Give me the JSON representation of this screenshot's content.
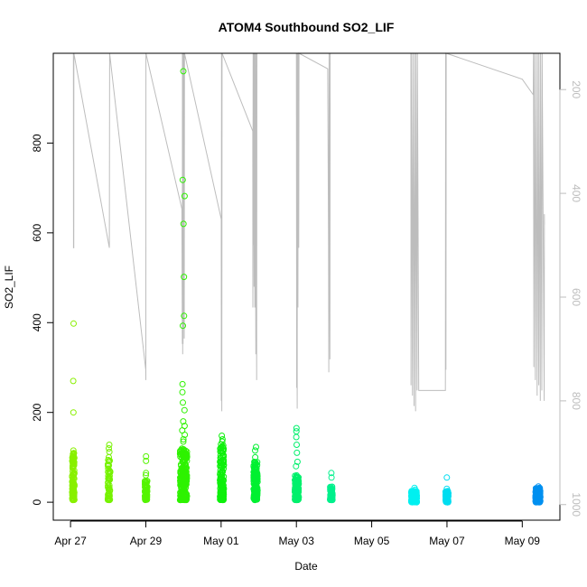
{
  "chart_data": {
    "type": "scatter",
    "title": "ATOM4 Southbound SO2_LIF",
    "xlabel": "Date",
    "ylabel": "SO2_LIF",
    "xlim": [
      "2016-04-26T13:00",
      "2016-05-10T00:00"
    ],
    "ylim": [
      -40,
      1000
    ],
    "x_ticks": [
      {
        "date": "2016-04-27",
        "label": "Apr 27"
      },
      {
        "date": "2016-04-29",
        "label": "Apr 29"
      },
      {
        "date": "2016-05-01",
        "label": "May 01"
      },
      {
        "date": "2016-05-03",
        "label": "May 03"
      },
      {
        "date": "2016-05-05",
        "label": "May 05"
      },
      {
        "date": "2016-05-07",
        "label": "May 07"
      },
      {
        "date": "2016-05-09",
        "label": "May 09"
      }
    ],
    "y_ticks": [
      0,
      200,
      400,
      600,
      800
    ],
    "secondary_axis": {
      "side": "right",
      "color": "#bdbdbd",
      "reversed": true,
      "ticks": [
        200,
        400,
        600,
        800,
        1000
      ],
      "range": [
        1030,
        130
      ]
    },
    "secondary_line": [
      [
        "2016-04-27T01:50",
        130
      ],
      [
        "2016-04-27T01:55",
        505
      ],
      [
        "2016-04-27T02:05",
        505
      ],
      [
        "2016-04-27T02:08",
        130
      ],
      [
        "2016-04-28T00:45",
        505
      ],
      [
        "2016-04-28T00:55",
        130
      ],
      [
        "2016-04-28T23:59",
        740
      ],
      [
        "2016-04-29T00:01",
        760
      ],
      [
        "2016-04-29T00:03",
        130
      ],
      [
        "2016-04-29T23:00",
        430
      ],
      [
        "2016-04-29T23:15",
        690
      ],
      [
        "2016-04-29T23:20",
        130
      ],
      [
        "2016-04-29T23:30",
        710
      ],
      [
        "2016-04-29T23:35",
        130
      ],
      [
        "2016-04-29T23:45",
        690
      ],
      [
        "2016-04-29T23:50",
        130
      ],
      [
        "2016-04-30T00:10",
        660
      ],
      [
        "2016-04-30T00:15",
        130
      ],
      [
        "2016-04-30T00:30",
        680
      ],
      [
        "2016-04-30T00:40",
        130
      ],
      [
        "2016-05-01T00:05",
        450
      ],
      [
        "2016-05-01T00:10",
        800
      ],
      [
        "2016-05-01T00:15",
        130
      ],
      [
        "2016-05-01T00:25",
        820
      ],
      [
        "2016-05-01T00:35",
        130
      ],
      [
        "2016-05-01T20:10",
        280
      ],
      [
        "2016-05-01T20:15",
        620
      ],
      [
        "2016-05-01T20:25",
        130
      ],
      [
        "2016-05-01T20:30",
        500
      ],
      [
        "2016-05-01T20:40",
        130
      ],
      [
        "2016-05-01T21:00",
        580
      ],
      [
        "2016-05-01T21:10",
        130
      ],
      [
        "2016-05-01T21:30",
        620
      ],
      [
        "2016-05-01T21:40",
        130
      ],
      [
        "2016-05-01T22:10",
        710
      ],
      [
        "2016-05-01T22:20",
        130
      ],
      [
        "2016-05-01T22:40",
        760
      ],
      [
        "2016-05-01T22:50",
        130
      ],
      [
        "2016-05-03T00:00",
        130
      ],
      [
        "2016-05-03T00:05",
        520
      ],
      [
        "2016-05-03T00:10",
        775
      ],
      [
        "2016-05-03T00:15",
        130
      ],
      [
        "2016-05-03T00:30",
        815
      ],
      [
        "2016-05-03T00:40",
        130
      ],
      [
        "2016-05-03T01:00",
        620
      ],
      [
        "2016-05-03T01:10",
        130
      ],
      [
        "2016-05-03T01:30",
        505
      ],
      [
        "2016-05-03T01:40",
        130
      ],
      [
        "2016-05-03T20:00",
        160
      ],
      [
        "2016-05-03T20:30",
        500
      ],
      [
        "2016-05-03T20:40",
        745
      ],
      [
        "2016-05-03T20:50",
        130
      ],
      [
        "2016-05-03T21:20",
        720
      ],
      [
        "2016-05-03T21:30",
        130
      ],
      [
        "2016-05-06T01:00",
        130
      ],
      [
        "2016-05-06T01:05",
        770
      ],
      [
        "2016-05-06T01:10",
        130
      ],
      [
        "2016-05-06T02:00",
        790
      ],
      [
        "2016-05-06T02:10",
        130
      ],
      [
        "2016-05-06T03:00",
        810
      ],
      [
        "2016-05-06T03:10",
        130
      ],
      [
        "2016-05-06T04:00",
        820
      ],
      [
        "2016-05-06T04:10",
        130
      ],
      [
        "2016-05-06T05:00",
        780
      ],
      [
        "2016-05-06T05:10",
        130
      ],
      [
        "2016-05-06T06:00",
        780
      ],
      [
        "2016-05-06T23:00",
        780
      ],
      [
        "2016-05-06T23:10",
        130
      ],
      [
        "2016-05-06T23:20",
        740
      ],
      [
        "2016-05-06T23:30",
        130
      ],
      [
        "2016-05-09T00:00",
        180
      ],
      [
        "2016-05-09T07:00",
        210
      ],
      [
        "2016-05-09T07:10",
        130
      ],
      [
        "2016-05-09T07:20",
        735
      ],
      [
        "2016-05-09T07:30",
        130
      ],
      [
        "2016-05-09T08:20",
        760
      ],
      [
        "2016-05-09T08:30",
        130
      ],
      [
        "2016-05-09T09:30",
        790
      ],
      [
        "2016-05-09T09:40",
        130
      ],
      [
        "2016-05-09T10:30",
        770
      ],
      [
        "2016-05-09T10:40",
        130
      ],
      [
        "2016-05-09T11:30",
        800
      ],
      [
        "2016-05-09T11:40",
        130
      ],
      [
        "2016-05-09T12:30",
        780
      ],
      [
        "2016-05-09T12:40",
        130
      ],
      [
        "2016-05-09T14:00",
        800
      ],
      [
        "2016-05-09T14:05",
        440
      ],
      [
        "2016-05-09T14:10",
        460
      ]
    ],
    "clusters": [
      {
        "center": "2016-04-27T01:45",
        "spread_hours": 1.5,
        "n": 140,
        "y_range": [
          5,
          110
        ],
        "color": "#89f000",
        "extra_points": [
          398,
          270,
          200,
          115,
          100
        ]
      },
      {
        "center": "2016-04-28T00:30",
        "spread_hours": 1.5,
        "n": 60,
        "y_range": [
          5,
          95
        ],
        "color": "#76f200",
        "extra_points": [
          128,
          120,
          112,
          100
        ]
      },
      {
        "center": "2016-04-29T00:10",
        "spread_hours": 1.5,
        "n": 80,
        "y_range": [
          5,
          50
        ],
        "color": "#55f400",
        "extra_points": [
          102,
          92,
          65,
          60
        ]
      },
      {
        "center": "2016-04-30T00:05",
        "spread_hours": 4.5,
        "n": 230,
        "y_range": [
          5,
          120
        ],
        "color": "#2ef200",
        "extra_points": [
          960,
          718,
          682,
          620,
          502,
          415,
          393,
          263,
          245,
          222,
          205,
          180,
          170,
          160,
          150,
          140,
          135
        ]
      },
      {
        "center": "2016-05-01T00:30",
        "spread_hours": 2.5,
        "n": 150,
        "y_range": [
          5,
          130
        ],
        "color": "#0ef00c",
        "extra_points": [
          148,
          140,
          135
        ]
      },
      {
        "center": "2016-05-01T22:00",
        "spread_hours": 2.5,
        "n": 140,
        "y_range": [
          5,
          90
        ],
        "color": "#00f031",
        "extra_points": [
          123,
          115,
          100
        ]
      },
      {
        "center": "2016-05-03T00:15",
        "spread_hours": 2.5,
        "n": 140,
        "y_range": [
          5,
          60
        ],
        "color": "#00f06c",
        "extra_points": [
          165,
          158,
          145,
          128,
          110,
          90,
          80
        ]
      },
      {
        "center": "2016-05-03T22:15",
        "spread_hours": 1.5,
        "n": 90,
        "y_range": [
          5,
          35
        ],
        "color": "#00f08c",
        "extra_points": [
          65,
          55
        ]
      },
      {
        "center": "2016-05-06T03:00",
        "spread_hours": 3.5,
        "n": 170,
        "y_range": [
          0,
          25
        ],
        "color": "#00f0f0",
        "extra_points": [
          32,
          28
        ]
      },
      {
        "center": "2016-05-07T00:00",
        "spread_hours": 1.8,
        "n": 110,
        "y_range": [
          0,
          25
        ],
        "color": "#00ddf0",
        "extra_points": [
          55,
          30
        ]
      },
      {
        "center": "2016-05-09T10:00",
        "spread_hours": 3.0,
        "n": 180,
        "y_range": [
          0,
          32
        ],
        "color": "#0090f0",
        "extra_points": [
          35
        ]
      }
    ]
  }
}
